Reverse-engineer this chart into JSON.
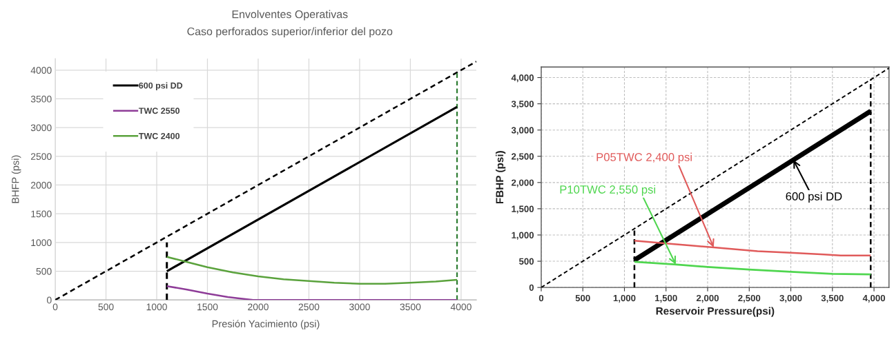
{
  "chart_data": [
    {
      "type": "line",
      "title": "Envolventes Operativas",
      "subtitle": "Caso perforados superior/inferior del pozo",
      "xlabel": "Presión Yacimiento (psi)",
      "ylabel": "BHFP (psi)",
      "xlim": [
        0,
        4150
      ],
      "ylim": [
        0,
        4200
      ],
      "xticks": [
        0,
        500,
        1000,
        1500,
        2000,
        2500,
        3000,
        3500,
        4000
      ],
      "yticks": [
        0,
        500,
        1000,
        1500,
        2000,
        2500,
        3000,
        3500,
        4000
      ],
      "grid": true,
      "legend": "top left",
      "marker": "none",
      "series": [
        {
          "color": "#000000",
          "line_style": "dashed",
          "x": [
            0,
            4150
          ],
          "values": [
            0,
            4150
          ]
        },
        {
          "color": "#000000",
          "line_style": "dashed",
          "x": [
            1100,
            1100
          ],
          "values": [
            0,
            1000
          ]
        },
        {
          "color": "#2e7d32",
          "line_style": "dashed",
          "x": [
            3960,
            3960
          ],
          "values": [
            0,
            3960
          ]
        },
        {
          "name": "600 psi DD",
          "color": "#000000",
          "line_style": "solid",
          "x": [
            1100,
            3960
          ],
          "values": [
            500,
            3360
          ]
        },
        {
          "name": "TWC 2550",
          "color": "#8e3c98",
          "line_style": "solid",
          "x": [
            1100,
            1300,
            1500,
            1700,
            1800,
            1950,
            3960
          ],
          "values": [
            240,
            180,
            110,
            50,
            30,
            0,
            0
          ]
        },
        {
          "name": "TWC 2400",
          "color": "#5aa23c",
          "line_style": "solid",
          "x": [
            1100,
            1300,
            1500,
            1750,
            2000,
            2250,
            2500,
            2750,
            3000,
            3250,
            3500,
            3750,
            3960
          ],
          "values": [
            750,
            660,
            570,
            480,
            410,
            360,
            330,
            300,
            280,
            280,
            300,
            320,
            350
          ]
        }
      ]
    },
    {
      "type": "line",
      "xlabel": "Reservoir Pressure(psi)",
      "ylabel": "FBHP (psi)",
      "xlim": [
        0,
        4180
      ],
      "ylim": [
        0,
        4200
      ],
      "xticks": [
        0,
        500,
        {
          "value": 1000,
          "label": "1,000"
        },
        {
          "value": 1500,
          "label": "1,500"
        },
        {
          "value": 2000,
          "label": "2,000"
        },
        {
          "value": 2500,
          "label": "2,500"
        },
        {
          "value": 3000,
          "label": "3,000"
        },
        {
          "value": 3500,
          "label": "3,500"
        },
        {
          "value": 4000,
          "label": "4,000"
        }
      ],
      "yticks": [
        0,
        500,
        {
          "value": 1000,
          "label": "1,000"
        },
        {
          "value": 1500,
          "label": "1,500"
        },
        {
          "value": 2000,
          "label": "2,000"
        },
        {
          "value": 2500,
          "label": "2,500"
        },
        {
          "value": 3000,
          "label": "3,000"
        },
        {
          "value": 3500,
          "label": "3,500"
        },
        {
          "value": 4000,
          "label": "4,000"
        }
      ],
      "grid": true,
      "legend": false,
      "marker": "none",
      "series": [
        {
          "color": "#000000",
          "line_style": "dashed",
          "x": [
            0,
            4180
          ],
          "values": [
            0,
            4180
          ]
        },
        {
          "color": "#000000",
          "line_style": "dashed",
          "x": [
            1120,
            1120
          ],
          "values": [
            0,
            1100
          ]
        },
        {
          "color": "#000000",
          "line_style": "dashed",
          "x": [
            3960,
            3960
          ],
          "values": [
            0,
            3960
          ]
        },
        {
          "name": "600 psi DD",
          "color": "#000000",
          "line_style": "solid",
          "x": [
            1120,
            3960
          ],
          "values": [
            520,
            3360
          ]
        },
        {
          "name": "P05TWC 2,400 psi",
          "color": "#e05a5a",
          "line_style": "solid",
          "x": [
            1120,
            1500,
            1800,
            2100,
            2600,
            3000,
            3400,
            3600,
            3960
          ],
          "values": [
            890,
            840,
            800,
            760,
            690,
            660,
            630,
            610,
            610
          ]
        },
        {
          "name": "P10TWC 2,550 psi",
          "color": "#4fd64f",
          "line_style": "solid",
          "x": [
            1120,
            1600,
            2000,
            2500,
            3000,
            3500,
            3960
          ],
          "values": [
            490,
            440,
            390,
            340,
            300,
            260,
            250
          ]
        }
      ]
    }
  ]
}
